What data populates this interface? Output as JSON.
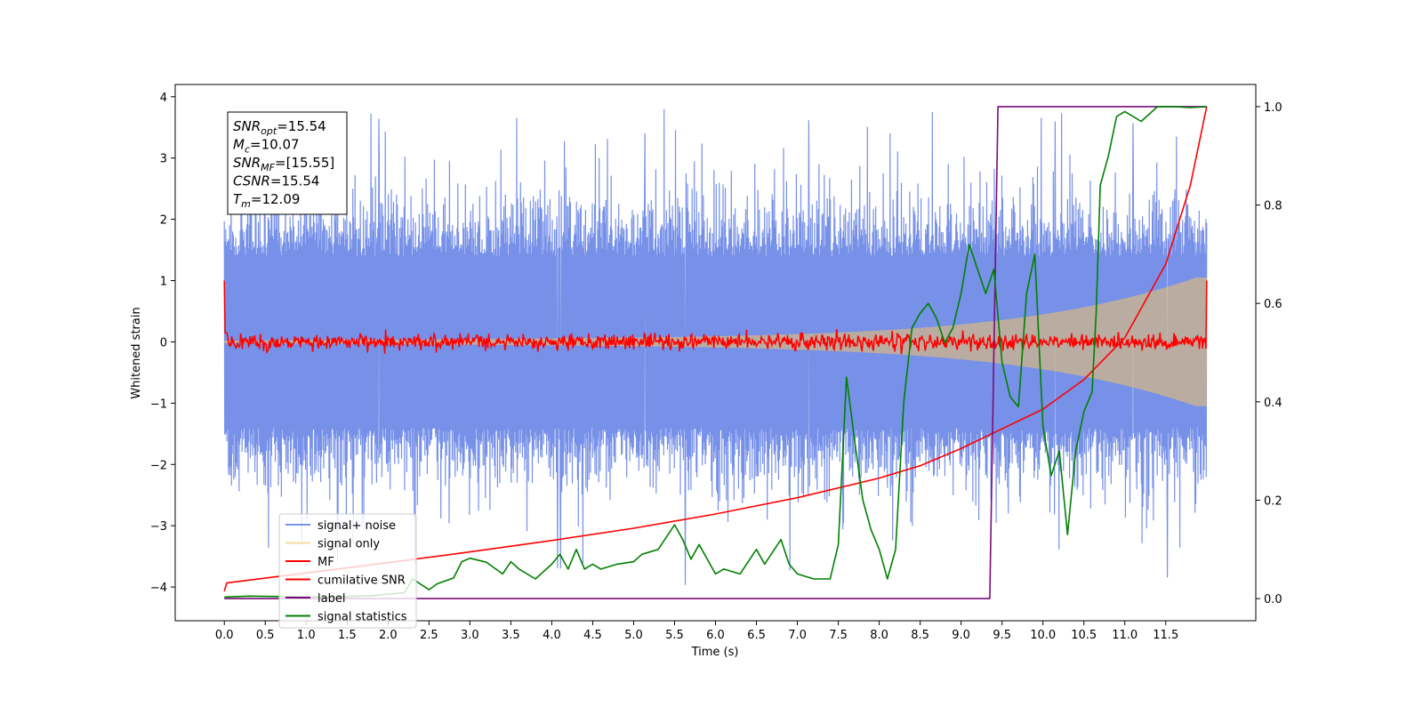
{
  "chart_data": {
    "type": "line",
    "xlabel": "Time (s)",
    "ylabel": "Whitened strain",
    "xlim": [
      -0.6,
      12.6
    ],
    "ylim": [
      -4.55,
      4.2
    ],
    "y2lim": [
      -0.045,
      1.045
    ],
    "x_ticks": [
      0.0,
      0.5,
      1.0,
      1.5,
      2.0,
      2.5,
      3.0,
      3.5,
      4.0,
      4.5,
      5.0,
      5.5,
      6.0,
      6.5,
      7.0,
      7.5,
      8.0,
      8.5,
      9.0,
      9.5,
      10.0,
      10.5,
      11.0,
      11.5
    ],
    "x_tick_labels": [
      "0.0",
      "0.5",
      "1.0",
      "1.5",
      "2.0",
      "2.5",
      "3.0",
      "3.5",
      "4.0",
      "4.5",
      "5.0",
      "5.5",
      "6.0",
      "6.5",
      "7.0",
      "7.5",
      "8.0",
      "8.5",
      "9.0",
      "9.5",
      "10.0",
      "10.5",
      "11.0",
      "11.5"
    ],
    "y_ticks": [
      4,
      3,
      2,
      1,
      0,
      -1,
      -2,
      -3,
      -4
    ],
    "y_tick_labels": [
      "4",
      "3",
      "2",
      "1",
      "0",
      "−1",
      "−2",
      "−3",
      "−4"
    ],
    "y2_ticks": [
      1.0,
      0.8,
      0.6,
      0.4,
      0.2,
      0.0
    ],
    "y2_tick_labels": [
      "1.0",
      "0.8",
      "0.6",
      "0.4",
      "0.2",
      "0.0"
    ],
    "grid": false,
    "legend_position": "lower-left",
    "series": [
      {
        "name": "signal+ noise",
        "color": "#6b88e6",
        "axis": "left",
        "style": "noise",
        "t_end": 12.0,
        "band_lo": 1.4,
        "band_hi": 2.2,
        "peak": 3.8,
        "trough": -4.15
      },
      {
        "name": "signal only",
        "color": "#f3c266",
        "axis": "left",
        "style": "chirp",
        "t_end": 12.0,
        "amp_start": 0.02,
        "amp_end": 1.05
      },
      {
        "name": "MF",
        "color": "#ff0000",
        "axis": "left",
        "style": "mf",
        "t_end": 12.0,
        "start_value": 1.0,
        "end_value": 1.0,
        "level": 0.0,
        "jitter": 0.12
      },
      {
        "name": "cumilative SNR",
        "color": "#ff0000",
        "axis": "right",
        "x": [
          0.0,
          0.03,
          1.0,
          2.0,
          3.0,
          4.0,
          5.0,
          6.0,
          7.0,
          8.0,
          8.5,
          9.0,
          9.5,
          10.0,
          10.5,
          11.0,
          11.5,
          11.8,
          12.0
        ],
        "y": [
          0.015,
          0.032,
          0.052,
          0.073,
          0.095,
          0.118,
          0.143,
          0.172,
          0.205,
          0.245,
          0.27,
          0.305,
          0.345,
          0.385,
          0.445,
          0.53,
          0.68,
          0.84,
          1.0
        ]
      },
      {
        "name": "label",
        "color": "#7b0b7b",
        "axis": "right",
        "x": [
          0.0,
          9.35,
          9.45,
          12.0
        ],
        "y": [
          0.0,
          0.0,
          1.0,
          1.0
        ]
      },
      {
        "name": "signal statistics",
        "color": "#008000",
        "axis": "right",
        "x": [
          0.0,
          0.3,
          0.8,
          1.3,
          1.8,
          2.2,
          2.3,
          2.5,
          2.6,
          2.8,
          2.9,
          3.0,
          3.2,
          3.4,
          3.5,
          3.6,
          3.8,
          4.0,
          4.1,
          4.2,
          4.3,
          4.4,
          4.5,
          4.6,
          4.8,
          5.0,
          5.1,
          5.3,
          5.5,
          5.6,
          5.7,
          5.8,
          6.0,
          6.1,
          6.3,
          6.5,
          6.6,
          6.8,
          6.9,
          7.0,
          7.2,
          7.4,
          7.5,
          7.6,
          7.7,
          7.8,
          7.9,
          8.0,
          8.1,
          8.2,
          8.3,
          8.4,
          8.5,
          8.6,
          8.7,
          8.8,
          8.9,
          9.0,
          9.1,
          9.2,
          9.3,
          9.4,
          9.5,
          9.6,
          9.7,
          9.8,
          9.9,
          10.0,
          10.1,
          10.2,
          10.3,
          10.4,
          10.5,
          10.6,
          10.65,
          10.7,
          10.8,
          10.9,
          11.0,
          11.2,
          11.4,
          11.6,
          11.8,
          12.0
        ],
        "y": [
          0.003,
          0.005,
          0.004,
          0.003,
          0.006,
          0.012,
          0.04,
          0.018,
          0.03,
          0.042,
          0.075,
          0.082,
          0.074,
          0.05,
          0.075,
          0.06,
          0.04,
          0.07,
          0.09,
          0.06,
          0.1,
          0.06,
          0.07,
          0.06,
          0.07,
          0.075,
          0.09,
          0.1,
          0.15,
          0.12,
          0.08,
          0.11,
          0.05,
          0.06,
          0.05,
          0.1,
          0.07,
          0.12,
          0.07,
          0.05,
          0.04,
          0.04,
          0.11,
          0.45,
          0.32,
          0.2,
          0.14,
          0.1,
          0.04,
          0.1,
          0.4,
          0.55,
          0.58,
          0.6,
          0.57,
          0.52,
          0.55,
          0.62,
          0.72,
          0.67,
          0.62,
          0.67,
          0.48,
          0.41,
          0.39,
          0.62,
          0.7,
          0.35,
          0.25,
          0.3,
          0.13,
          0.3,
          0.38,
          0.42,
          0.58,
          0.84,
          0.9,
          0.98,
          0.99,
          0.97,
          1.0,
          1.0,
          0.998,
          1.0
        ]
      }
    ]
  },
  "annotation": {
    "lines": [
      {
        "var": "SNR",
        "sub": "opt",
        "value": "=15.54"
      },
      {
        "var": "M",
        "sub": "c",
        "value": "=10.07"
      },
      {
        "var": "SNR",
        "sub": "MF",
        "value": "=[15.55]"
      },
      {
        "var": "CSNR",
        "sub": "",
        "value": "=15.54"
      },
      {
        "var": "T",
        "sub": "m",
        "value": "=12.09"
      }
    ]
  }
}
